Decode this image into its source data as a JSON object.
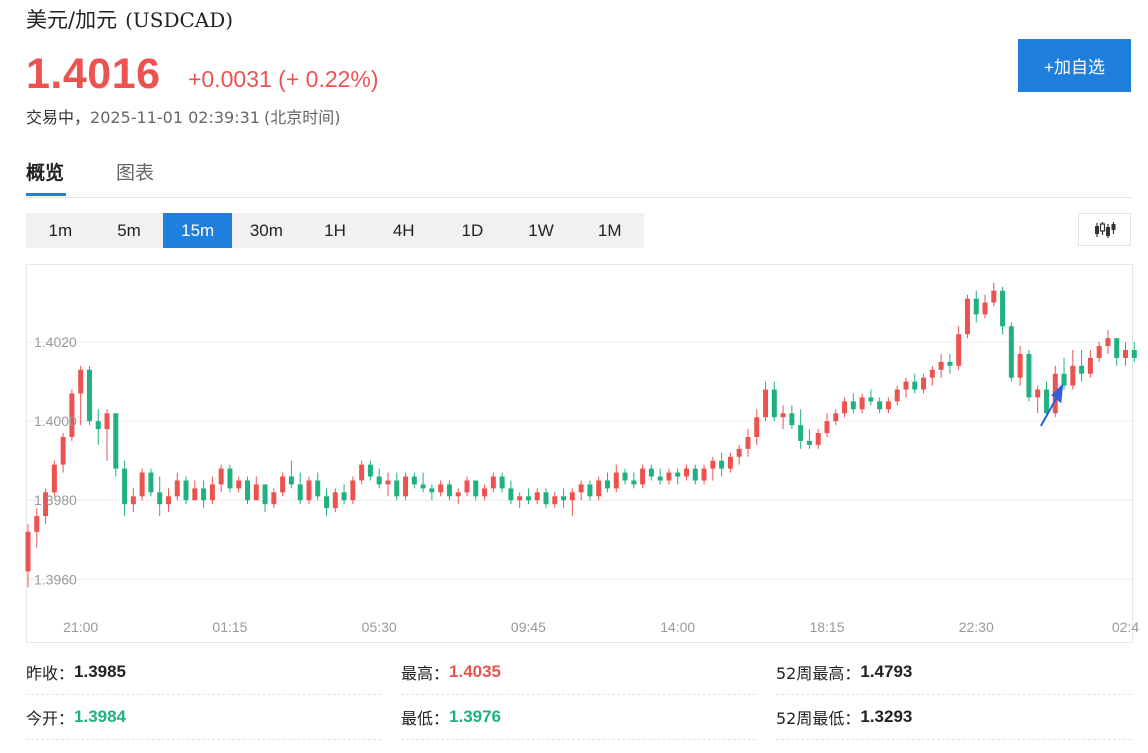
{
  "header": {
    "title": "美元/加元",
    "code": "(USDCAD)",
    "price": "1.4016",
    "change": "+0.0031 (+ 0.22%)",
    "status": "交易中，",
    "time": "2025-11-01 02:39:31",
    "timezone": "(北京时间)",
    "add_label": "+加自选"
  },
  "tabs": [
    {
      "label": "概览",
      "active": true
    },
    {
      "label": "图表",
      "active": false
    }
  ],
  "intervals": [
    {
      "label": "1m",
      "active": false
    },
    {
      "label": "5m",
      "active": false
    },
    {
      "label": "15m",
      "active": true
    },
    {
      "label": "30m",
      "active": false
    },
    {
      "label": "1H",
      "active": false
    },
    {
      "label": "4H",
      "active": false
    },
    {
      "label": "1D",
      "active": false
    },
    {
      "label": "1W",
      "active": false
    },
    {
      "label": "1M",
      "active": false
    }
  ],
  "chart_toggle_icon": "candlestick-icon",
  "colors": {
    "up": "#ec5350",
    "down": "#20b27e",
    "accent": "#1f7fdd",
    "annotation": "#2f5fd8"
  },
  "chart_data": {
    "type": "candlestick",
    "y_ticks": [
      "1.4020",
      "1.4000",
      "1.3980",
      "1.3960"
    ],
    "y_tick_values": [
      1.402,
      1.4,
      1.398,
      1.396
    ],
    "ylim": [
      1.39535,
      1.40395
    ],
    "x_ticks": [
      "21:00",
      "01:15",
      "05:30",
      "09:45",
      "14:00",
      "18:15",
      "22:30",
      "02:4"
    ],
    "x_tick_index": [
      6,
      23,
      40,
      57,
      74,
      91,
      108,
      125
    ],
    "grid": true,
    "annotation": "arrow",
    "annotation_index": 117,
    "candles": [
      [
        1.3962,
        1.3974,
        1.3958,
        1.3972
      ],
      [
        1.3972,
        1.3978,
        1.3968,
        1.3976
      ],
      [
        1.3976,
        1.3983,
        1.3974,
        1.3982
      ],
      [
        1.3982,
        1.399,
        1.3981,
        1.3989
      ],
      [
        1.3989,
        1.3997,
        1.3987,
        1.3996
      ],
      [
        1.3996,
        1.4008,
        1.3995,
        1.4007
      ],
      [
        1.4007,
        1.4014,
        1.3999,
        1.4013
      ],
      [
        1.4013,
        1.4014,
        1.3999,
        1.4
      ],
      [
        1.4,
        1.4003,
        1.3994,
        1.3998
      ],
      [
        1.3998,
        1.4003,
        1.399,
        1.4002
      ],
      [
        1.4002,
        1.4002,
        1.3986,
        1.3988
      ],
      [
        1.3988,
        1.399,
        1.3976,
        1.3979
      ],
      [
        1.3979,
        1.3983,
        1.3977,
        1.3981
      ],
      [
        1.3981,
        1.3988,
        1.398,
        1.3987
      ],
      [
        1.3987,
        1.3988,
        1.3981,
        1.3982
      ],
      [
        1.3982,
        1.3986,
        1.3976,
        1.3979
      ],
      [
        1.3979,
        1.3983,
        1.3977,
        1.3981
      ],
      [
        1.3981,
        1.3987,
        1.398,
        1.3985
      ],
      [
        1.3985,
        1.3986,
        1.3979,
        1.398
      ],
      [
        1.398,
        1.3985,
        1.398,
        1.3983
      ],
      [
        1.3983,
        1.3985,
        1.3978,
        1.398
      ],
      [
        1.398,
        1.3986,
        1.3979,
        1.3984
      ],
      [
        1.3984,
        1.3989,
        1.3982,
        1.3988
      ],
      [
        1.3988,
        1.3989,
        1.3982,
        1.3983
      ],
      [
        1.3983,
        1.3986,
        1.3982,
        1.3985
      ],
      [
        1.3985,
        1.3986,
        1.3979,
        1.398
      ],
      [
        1.398,
        1.3986,
        1.398,
        1.3984
      ],
      [
        1.3984,
        1.3984,
        1.3977,
        1.3979
      ],
      [
        1.3979,
        1.3983,
        1.3978,
        1.3982
      ],
      [
        1.3982,
        1.3987,
        1.3981,
        1.3986
      ],
      [
        1.3986,
        1.399,
        1.3983,
        1.3984
      ],
      [
        1.3984,
        1.3987,
        1.3979,
        1.398
      ],
      [
        1.398,
        1.3986,
        1.3979,
        1.3985
      ],
      [
        1.3985,
        1.3987,
        1.398,
        1.3981
      ],
      [
        1.3981,
        1.3983,
        1.3976,
        1.3978
      ],
      [
        1.3978,
        1.3983,
        1.3977,
        1.3982
      ],
      [
        1.3982,
        1.3984,
        1.3979,
        1.398
      ],
      [
        1.398,
        1.3986,
        1.3979,
        1.3985
      ],
      [
        1.3985,
        1.399,
        1.3984,
        1.3989
      ],
      [
        1.3989,
        1.399,
        1.3985,
        1.3986
      ],
      [
        1.3986,
        1.3988,
        1.3983,
        1.3984
      ],
      [
        1.3984,
        1.3987,
        1.3981,
        1.3985
      ],
      [
        1.3985,
        1.3987,
        1.398,
        1.3981
      ],
      [
        1.3981,
        1.3987,
        1.398,
        1.3986
      ],
      [
        1.3986,
        1.3987,
        1.3983,
        1.3984
      ],
      [
        1.3984,
        1.3987,
        1.3982,
        1.3983
      ],
      [
        1.3983,
        1.3984,
        1.398,
        1.3982
      ],
      [
        1.3982,
        1.3985,
        1.3981,
        1.3984
      ],
      [
        1.3984,
        1.3985,
        1.398,
        1.3981
      ],
      [
        1.3981,
        1.3983,
        1.3979,
        1.3982
      ],
      [
        1.3982,
        1.3986,
        1.3981,
        1.3985
      ],
      [
        1.3985,
        1.3985,
        1.398,
        1.3981
      ],
      [
        1.3981,
        1.3984,
        1.398,
        1.3983
      ],
      [
        1.3983,
        1.3987,
        1.3982,
        1.3986
      ],
      [
        1.3986,
        1.3987,
        1.3982,
        1.3983
      ],
      [
        1.3983,
        1.3985,
        1.3979,
        1.398
      ],
      [
        1.398,
        1.3982,
        1.3978,
        1.3981
      ],
      [
        1.3981,
        1.3983,
        1.3979,
        1.398
      ],
      [
        1.398,
        1.3983,
        1.3979,
        1.3982
      ],
      [
        1.3982,
        1.3983,
        1.3978,
        1.3979
      ],
      [
        1.3979,
        1.3982,
        1.3978,
        1.3981
      ],
      [
        1.3981,
        1.3983,
        1.3978,
        1.398
      ],
      [
        1.398,
        1.3983,
        1.3976,
        1.3982
      ],
      [
        1.3982,
        1.3985,
        1.398,
        1.3984
      ],
      [
        1.3984,
        1.3985,
        1.398,
        1.3981
      ],
      [
        1.3981,
        1.3986,
        1.398,
        1.3985
      ],
      [
        1.3985,
        1.3987,
        1.3982,
        1.3983
      ],
      [
        1.3983,
        1.3989,
        1.3982,
        1.3987
      ],
      [
        1.3987,
        1.3988,
        1.3984,
        1.3985
      ],
      [
        1.3985,
        1.3987,
        1.3983,
        1.3984
      ],
      [
        1.3984,
        1.3989,
        1.3983,
        1.3988
      ],
      [
        1.3988,
        1.3989,
        1.3985,
        1.3986
      ],
      [
        1.3986,
        1.3988,
        1.3984,
        1.3985
      ],
      [
        1.3985,
        1.3988,
        1.3984,
        1.3987
      ],
      [
        1.3987,
        1.3988,
        1.3984,
        1.3986
      ],
      [
        1.3986,
        1.3989,
        1.3985,
        1.3988
      ],
      [
        1.3988,
        1.3989,
        1.3984,
        1.3985
      ],
      [
        1.3985,
        1.3989,
        1.3984,
        1.3988
      ],
      [
        1.3988,
        1.3991,
        1.3985,
        1.399
      ],
      [
        1.399,
        1.3992,
        1.3986,
        1.3988
      ],
      [
        1.3988,
        1.3992,
        1.3987,
        1.3991
      ],
      [
        1.3991,
        1.3994,
        1.3989,
        1.3993
      ],
      [
        1.3993,
        1.3998,
        1.3991,
        1.3996
      ],
      [
        1.3996,
        1.4003,
        1.3994,
        1.4001
      ],
      [
        1.4001,
        1.401,
        1.4,
        1.4008
      ],
      [
        1.4008,
        1.401,
        1.4,
        1.4001
      ],
      [
        1.4001,
        1.4004,
        1.3998,
        1.4002
      ],
      [
        1.4002,
        1.4004,
        1.3998,
        1.3999
      ],
      [
        1.3999,
        1.4003,
        1.3993,
        1.3995
      ],
      [
        1.3995,
        1.3998,
        1.3993,
        1.3994
      ],
      [
        1.3994,
        1.3998,
        1.3993,
        1.3997
      ],
      [
        1.3997,
        1.4002,
        1.3996,
        1.4
      ],
      [
        1.4,
        1.4003,
        1.3999,
        1.4002
      ],
      [
        1.4002,
        1.4006,
        1.4001,
        1.4005
      ],
      [
        1.4005,
        1.4007,
        1.4002,
        1.4003
      ],
      [
        1.4003,
        1.4007,
        1.4002,
        1.4006
      ],
      [
        1.4006,
        1.4008,
        1.4004,
        1.4005
      ],
      [
        1.4005,
        1.4006,
        1.4002,
        1.4003
      ],
      [
        1.4003,
        1.4006,
        1.4002,
        1.4005
      ],
      [
        1.4005,
        1.4009,
        1.4004,
        1.4008
      ],
      [
        1.4008,
        1.4011,
        1.4006,
        1.401
      ],
      [
        1.401,
        1.4012,
        1.4007,
        1.4008
      ],
      [
        1.4008,
        1.4012,
        1.4007,
        1.4011
      ],
      [
        1.4011,
        1.4014,
        1.4009,
        1.4013
      ],
      [
        1.4013,
        1.4017,
        1.4011,
        1.4015
      ],
      [
        1.4015,
        1.4017,
        1.4012,
        1.4014
      ],
      [
        1.4014,
        1.4024,
        1.4013,
        1.4022
      ],
      [
        1.4022,
        1.4032,
        1.4021,
        1.4031
      ],
      [
        1.4031,
        1.4033,
        1.4025,
        1.4027
      ],
      [
        1.4027,
        1.4032,
        1.4026,
        1.403
      ],
      [
        1.403,
        1.4035,
        1.4029,
        1.4033
      ],
      [
        1.4033,
        1.4034,
        1.4022,
        1.4024
      ],
      [
        1.4024,
        1.4025,
        1.401,
        1.4011
      ],
      [
        1.4011,
        1.4019,
        1.4009,
        1.4017
      ],
      [
        1.4017,
        1.4018,
        1.4005,
        1.4006
      ],
      [
        1.4006,
        1.4009,
        1.4002,
        1.4008
      ],
      [
        1.4008,
        1.401,
        1.4001,
        1.4002
      ],
      [
        1.4002,
        1.4014,
        1.4001,
        1.4012
      ],
      [
        1.4012,
        1.4016,
        1.4008,
        1.4009
      ],
      [
        1.4009,
        1.4018,
        1.4008,
        1.4014
      ],
      [
        1.4014,
        1.4018,
        1.401,
        1.4012
      ],
      [
        1.4012,
        1.4018,
        1.4011,
        1.4016
      ],
      [
        1.4016,
        1.402,
        1.4015,
        1.4019
      ],
      [
        1.4019,
        1.4023,
        1.4017,
        1.4021
      ],
      [
        1.4021,
        1.4021,
        1.4014,
        1.4016
      ],
      [
        1.4016,
        1.402,
        1.4014,
        1.4018
      ],
      [
        1.4018,
        1.402,
        1.4015,
        1.4016
      ]
    ]
  },
  "stats": [
    {
      "label": "昨收：",
      "value": "1.3985",
      "tone": "neutral"
    },
    {
      "label": "最高：",
      "value": "1.4035",
      "tone": "up"
    },
    {
      "label": "52周最高：",
      "value": "1.4793",
      "tone": "neutral"
    },
    {
      "label": "今开：",
      "value": "1.3984",
      "tone": "down"
    },
    {
      "label": "最低：",
      "value": "1.3976",
      "tone": "down"
    },
    {
      "label": "52周最低：",
      "value": "1.3293",
      "tone": "neutral"
    }
  ]
}
